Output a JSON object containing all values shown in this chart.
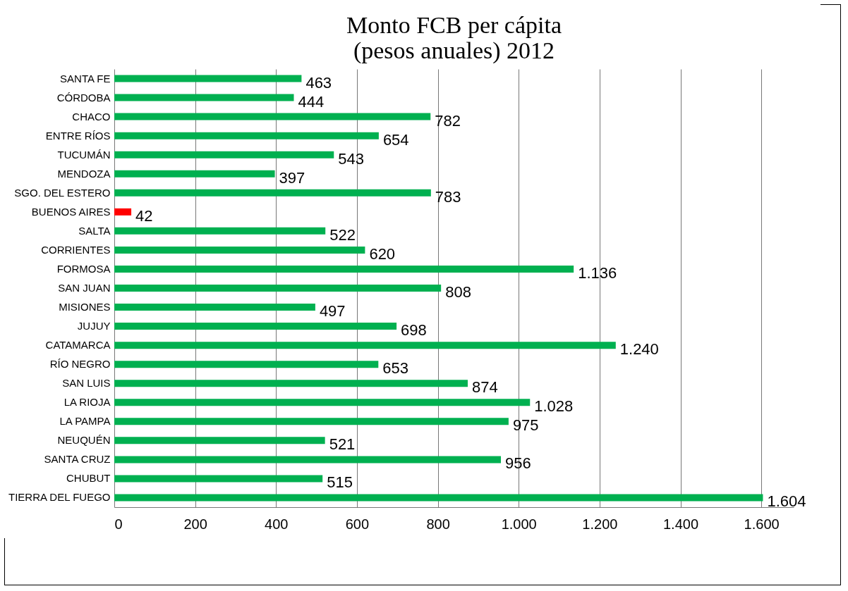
{
  "chart_data": {
    "type": "bar",
    "orientation": "horizontal",
    "title": "Monto FCB per cápita\n(pesos anuales) 2012",
    "categories": [
      "SANTA FE",
      "CÓRDOBA",
      "CHACO",
      "ENTRE RÍOS",
      "TUCUMÁN",
      "MENDOZA",
      "SGO. DEL ESTERO",
      "BUENOS AIRES",
      "SALTA",
      "CORRIENTES",
      "FORMOSA",
      "SAN JUAN",
      "MISIONES",
      "JUJUY",
      "CATAMARCA",
      "RÍO NEGRO",
      "SAN LUIS",
      "LA RIOJA",
      "LA PAMPA",
      "NEUQUÉN",
      "SANTA CRUZ",
      "CHUBUT",
      "TIERRA DEL FUEGO"
    ],
    "values": [
      463,
      444,
      782,
      654,
      543,
      397,
      783,
      42,
      522,
      620,
      1136,
      808,
      497,
      698,
      1240,
      653,
      874,
      1028,
      975,
      521,
      956,
      515,
      1604
    ],
    "value_labels": [
      "463",
      "444",
      "782",
      "654",
      "543",
      "397",
      "783",
      "42",
      "522",
      "620",
      "1.136",
      "808",
      "497",
      "698",
      "1.240",
      "653",
      "874",
      "1.028",
      "975",
      "521",
      "956",
      "515",
      "1.604"
    ],
    "colors": [
      "#00b050",
      "#00b050",
      "#00b050",
      "#00b050",
      "#00b050",
      "#00b050",
      "#00b050",
      "#ff0000",
      "#00b050",
      "#00b050",
      "#00b050",
      "#00b050",
      "#00b050",
      "#00b050",
      "#00b050",
      "#00b050",
      "#00b050",
      "#00b050",
      "#00b050",
      "#00b050",
      "#00b050",
      "#00b050",
      "#00b050"
    ],
    "xlim": [
      0,
      1680
    ],
    "xticks": [
      0,
      200,
      400,
      600,
      800,
      {
        "value": 1000,
        "label": "1.000"
      },
      {
        "value": 1200,
        "label": "1.200"
      },
      {
        "value": 1400,
        "label": "1.400"
      },
      {
        "value": 1600,
        "label": "1.600"
      }
    ],
    "grid": "x"
  }
}
